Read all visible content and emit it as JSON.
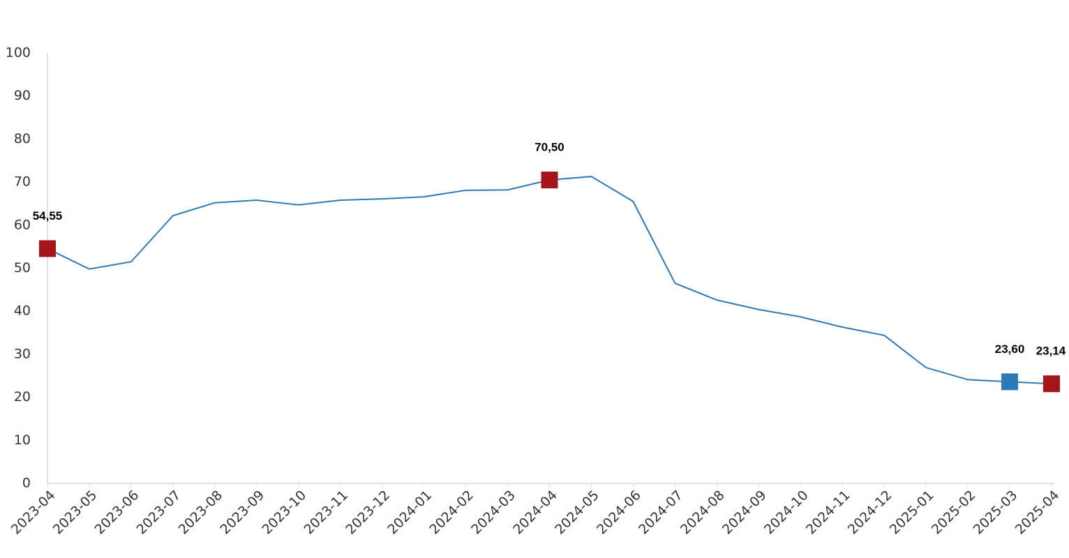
{
  "chart_data": {
    "type": "line",
    "categories": [
      "2023-04",
      "2023-05",
      "2023-06",
      "2023-07",
      "2023-08",
      "2023-09",
      "2023-10",
      "2023-11",
      "2023-12",
      "2024-01",
      "2024-02",
      "2024-03",
      "2024-04",
      "2024-05",
      "2024-06",
      "2024-07",
      "2024-08",
      "2024-09",
      "2024-10",
      "2024-11",
      "2024-12",
      "2025-01",
      "2025-02",
      "2025-03",
      "2025-04"
    ],
    "values": [
      54.55,
      49.8,
      51.5,
      62.2,
      65.2,
      65.8,
      64.7,
      65.8,
      66.1,
      66.6,
      68.1,
      68.2,
      70.5,
      71.3,
      65.5,
      46.5,
      42.6,
      40.4,
      38.7,
      36.3,
      34.4,
      26.9,
      24.1,
      23.6,
      23.14
    ],
    "value_labels": [
      "54,55",
      null,
      null,
      null,
      null,
      null,
      null,
      null,
      null,
      null,
      null,
      null,
      "70,50",
      null,
      null,
      null,
      null,
      null,
      null,
      null,
      null,
      null,
      null,
      "23,60",
      "23,14"
    ],
    "marker_colors": [
      "#a6141c",
      null,
      null,
      null,
      null,
      null,
      null,
      null,
      null,
      null,
      null,
      null,
      "#a6141c",
      null,
      null,
      null,
      null,
      null,
      null,
      null,
      null,
      null,
      null,
      "#2e7ab6",
      "#a6141c"
    ],
    "color": "#2e7ab6",
    "ylim": [
      0,
      100
    ],
    "yticks": [
      0,
      10,
      20,
      30,
      40,
      50,
      60,
      70,
      80,
      90,
      100
    ],
    "grid": false
  }
}
